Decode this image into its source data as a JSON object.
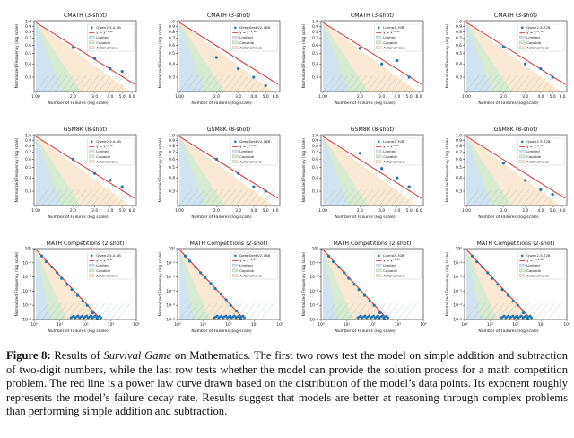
{
  "figure": {
    "legend_entries": [
      "Limited",
      "Capable",
      "Autonomous"
    ],
    "xlabel": "Number of Failures (log scale)",
    "ylabel": "Normalized Frequency (log scale)",
    "colors": {
      "fit": "#d62728",
      "points": "#1f77b4",
      "limited": "#cfe3f2",
      "capable": "#d4ebd0",
      "autonomous": "#fbe7cf"
    },
    "rows": [
      {
        "title": "CMATH (3-shot)",
        "kind": "linear",
        "xticks": [
          "1.00",
          "2.0",
          "3.0",
          "4.0",
          "5.0",
          "6.0"
        ],
        "yticks": [
          "1.0",
          "0.9",
          "0.8",
          "0.7",
          "0.6",
          "0.5",
          "0.4",
          "0.3"
        ]
      },
      {
        "title": "GSM8K (8-shot)",
        "kind": "linear",
        "xticks": [
          "1.00",
          "2.0",
          "3.0",
          "4.0",
          "5.0",
          "6.0"
        ],
        "yticks": [
          "1.0",
          "0.9",
          "0.8",
          "0.7",
          "0.6",
          "0.5",
          "0.4",
          "0.3"
        ]
      },
      {
        "title": "MATH Competitions (2-shot)",
        "kind": "log",
        "xticks": [
          "10⁰",
          "10¹",
          "10²",
          "10³",
          "10⁴"
        ],
        "yticks": [
          "10⁰",
          "10⁻¹",
          "10⁻²",
          "10⁻³",
          "10⁻⁴",
          "10⁻⁵"
        ]
      }
    ],
    "models": [
      {
        "name": "Qwen2.5-0.5B",
        "fits": [
          "y = x⁻⁰·⁸³",
          "y = x⁻⁰·⁷⁸",
          "y = x⁻¹·⁹⁷"
        ]
      },
      {
        "name": "DeepSeekV2-16B",
        "fits": [
          "y = x⁻¹·¹⁴",
          "y = x⁻⁰·⁸⁶",
          "y = x⁻¹·⁸⁷"
        ]
      },
      {
        "name": "Llama3-70B",
        "fits": [
          "y = x⁻⁰·⁹⁵",
          "y = x⁻⁰·⁹⁷",
          "y = x⁻¹·⁹⁹"
        ]
      },
      {
        "name": "Qwen2.5-72B",
        "fits": [
          "y = x⁻⁰·⁹⁴",
          "y = x⁻¹·²⁵",
          "y = x⁻¹·⁹⁸"
        ]
      }
    ]
  },
  "chart_data": [
    {
      "type": "scatter",
      "title": "CMATH (3-shot)",
      "series": [
        {
          "name": "Qwen2.5-0.5B",
          "x": [
            2,
            3,
            4,
            5
          ],
          "y": [
            0.57,
            0.45,
            0.36,
            0.34
          ]
        }
      ],
      "xlabel": "Number of Failures (log scale)",
      "ylabel": "Normalized Frequency (log scale)",
      "xlim": [
        1,
        6
      ],
      "ylim": [
        0.22,
        1.0
      ]
    },
    {
      "type": "scatter",
      "title": "CMATH (3-shot)",
      "series": [
        {
          "name": "DeepSeekV2-16B",
          "x": [
            2,
            3,
            4,
            5
          ],
          "y": [
            0.46,
            0.36,
            0.3,
            0.25
          ]
        }
      ],
      "xlabel": "Number of Failures (log scale)",
      "ylabel": "Normalized Frequency (log scale)",
      "xlim": [
        1,
        6
      ],
      "ylim": [
        0.22,
        1.0
      ]
    },
    {
      "type": "scatter",
      "title": "CMATH (3-shot)",
      "series": [
        {
          "name": "Llama3-70B",
          "x": [
            2,
            3,
            4,
            5
          ],
          "y": [
            0.56,
            0.4,
            0.43,
            0.3
          ]
        }
      ],
      "xlabel": "Number of Failures (log scale)",
      "ylabel": "Normalized Frequency (log scale)",
      "xlim": [
        1,
        6
      ],
      "ylim": [
        0.22,
        1.0
      ]
    },
    {
      "type": "scatter",
      "title": "CMATH (3-shot)",
      "series": [
        {
          "name": "Qwen2.5-72B",
          "x": [
            2,
            3,
            4,
            5
          ],
          "y": [
            0.58,
            0.4,
            0.36,
            0.3
          ]
        }
      ],
      "xlabel": "Number of Failures (log scale)",
      "ylabel": "Normalized Frequency (log scale)",
      "xlim": [
        1,
        6
      ],
      "ylim": [
        0.22,
        1.0
      ]
    },
    {
      "type": "scatter",
      "title": "GSM8K (8-shot)",
      "series": [
        {
          "name": "Qwen2.5-0.5B",
          "x": [
            2,
            3,
            4,
            5
          ],
          "y": [
            0.6,
            0.44,
            0.38,
            0.33
          ]
        }
      ],
      "xlabel": "Number of Failures (log scale)",
      "ylabel": "Normalized Frequency (log scale)",
      "xlim": [
        1,
        6
      ],
      "ylim": [
        0.22,
        1.0
      ]
    },
    {
      "type": "scatter",
      "title": "GSM8K (8-shot)",
      "series": [
        {
          "name": "DeepSeekV2-16B",
          "x": [
            2,
            3,
            4,
            5
          ],
          "y": [
            0.6,
            0.44,
            0.33,
            0.3
          ]
        }
      ],
      "xlabel": "Number of Failures (log scale)",
      "ylabel": "Normalized Frequency (log scale)",
      "xlim": [
        1,
        6
      ],
      "ylim": [
        0.22,
        1.0
      ]
    },
    {
      "type": "scatter",
      "title": "GSM8K (8-shot)",
      "series": [
        {
          "name": "Llama3-70B",
          "x": [
            2,
            3,
            4,
            5
          ],
          "y": [
            0.68,
            0.49,
            0.4,
            0.33
          ]
        }
      ],
      "xlabel": "Number of Failures (log scale)",
      "ylabel": "Normalized Frequency (log scale)",
      "xlim": [
        1,
        6
      ],
      "ylim": [
        0.22,
        1.0
      ]
    },
    {
      "type": "scatter",
      "title": "GSM8K (8-shot)",
      "series": [
        {
          "name": "Qwen2.5-72B",
          "x": [
            2,
            3,
            4,
            5
          ],
          "y": [
            0.55,
            0.38,
            0.31,
            0.28
          ]
        }
      ],
      "xlabel": "Number of Failures (log scale)",
      "ylabel": "Normalized Frequency (log scale)",
      "xlim": [
        1,
        6
      ],
      "ylim": [
        0.22,
        1.0
      ]
    },
    {
      "type": "scatter",
      "title": "MATH Competitions (2-shot)",
      "series": [
        {
          "name": "Qwen2.5-0.5B",
          "x": [
            1,
            2,
            3,
            5,
            8,
            12,
            20,
            30,
            50,
            80,
            120,
            200,
            300
          ],
          "y": [
            1,
            0.3,
            0.12,
            0.05,
            0.02,
            0.008,
            0.003,
            0.0013,
            0.0005,
            0.0002,
            0.0001,
            3e-05,
            1e-05
          ]
        }
      ],
      "xlabel": "Number of Failures (log scale)",
      "ylabel": "Normalized Frequency (log scale)",
      "xscale": "log",
      "yscale": "log",
      "xlim": [
        1,
        10000
      ],
      "ylim": [
        1e-05,
        1
      ]
    },
    {
      "type": "scatter",
      "title": "MATH Competitions (2-shot)",
      "series": [
        {
          "name": "DeepSeekV2-16B",
          "x": [
            1,
            2,
            3,
            5,
            8,
            12,
            20,
            30,
            50,
            80,
            120,
            200,
            300
          ],
          "y": [
            1,
            0.3,
            0.13,
            0.05,
            0.02,
            0.009,
            0.0035,
            0.0015,
            0.0006,
            0.00025,
            0.0001,
            4e-05,
            1e-05
          ]
        }
      ],
      "xlabel": "Number of Failures (log scale)",
      "ylabel": "Normalized Frequency (log scale)",
      "xscale": "log",
      "yscale": "log",
      "xlim": [
        1,
        10000
      ],
      "ylim": [
        1e-05,
        1
      ]
    },
    {
      "type": "scatter",
      "title": "MATH Competitions (2-shot)",
      "series": [
        {
          "name": "Llama3-70B",
          "x": [
            1,
            2,
            3,
            5,
            8,
            12,
            20,
            30,
            50,
            80,
            120,
            200,
            300
          ],
          "y": [
            1,
            0.3,
            0.12,
            0.05,
            0.02,
            0.008,
            0.003,
            0.0013,
            0.0005,
            0.0002,
            0.0001,
            3e-05,
            1e-05
          ]
        }
      ],
      "xlabel": "Number of Failures (log scale)",
      "ylabel": "Normalized Frequency (log scale)",
      "xscale": "log",
      "yscale": "log",
      "xlim": [
        1,
        10000
      ],
      "ylim": [
        1e-05,
        1
      ]
    },
    {
      "type": "scatter",
      "title": "MATH Competitions (2-shot)",
      "series": [
        {
          "name": "Qwen2.5-72B",
          "x": [
            1,
            2,
            3,
            5,
            8,
            12,
            20,
            30,
            50,
            80,
            120,
            200,
            300
          ],
          "y": [
            1,
            0.3,
            0.12,
            0.05,
            0.02,
            0.008,
            0.003,
            0.0013,
            0.0005,
            0.0002,
            0.0001,
            3e-05,
            1e-05
          ]
        }
      ],
      "xlabel": "Number of Failures (log scale)",
      "ylabel": "Normalized Frequency (log scale)",
      "xscale": "log",
      "yscale": "log",
      "xlim": [
        1,
        10000
      ],
      "ylim": [
        1e-05,
        1
      ]
    }
  ],
  "caption": {
    "label": "Figure 8:",
    "part1": " Results of ",
    "emph": "Survival Game",
    "part2": " on Mathematics. The first two rows test the model on simple addition and subtraction of two-digit numbers, while the last row tests whether the model can provide the solution process for a math competition problem. The red line is a power law curve drawn based on the distribution of the model’s data points. Its exponent roughly represents the model’s failure decay rate. Results suggest that models are better at reasoning through complex problems than performing simple addition and subtraction."
  }
}
